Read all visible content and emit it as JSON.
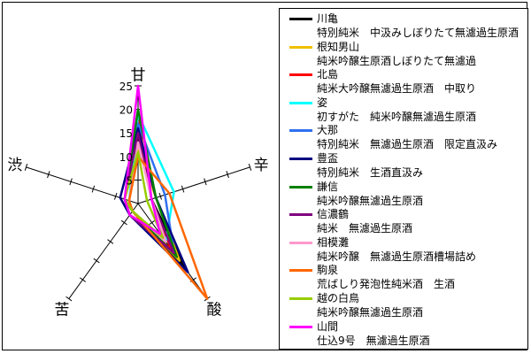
{
  "chart_data": {
    "type": "radar",
    "axes": [
      "甘",
      "辛",
      "酸",
      "苦",
      "渋"
    ],
    "ticks": [
      5,
      10,
      15,
      20,
      25
    ],
    "rmax": 25,
    "series": [
      {
        "name": "川亀",
        "description": "特別純米　中汲みしぼりたて無濾過生原酒",
        "color": "#000000",
        "values": [
          14,
          3,
          17,
          2,
          3
        ]
      },
      {
        "name": "根知男山",
        "description": "純米吟醸生原酒しぼりたて無濾過",
        "color": "#F0C000",
        "values": [
          12,
          4,
          15,
          2,
          2
        ]
      },
      {
        "name": "北島",
        "description": "純米大吟醸無濾過生原酒　中取り",
        "color": "#FF0000",
        "values": [
          18,
          3,
          12,
          3,
          3
        ]
      },
      {
        "name": "姿",
        "description": "初すがた　純米吟醸無濾過生原酒",
        "color": "#00FFFF",
        "values": [
          19,
          8,
          10,
          2,
          2
        ]
      },
      {
        "name": "大那",
        "description": "特別純米　無濾過生原酒　限定直汲み",
        "color": "#3070F0",
        "values": [
          17,
          6,
          13,
          3,
          3
        ]
      },
      {
        "name": "豊盃",
        "description": "特別純米　生酒直汲み",
        "color": "#000080",
        "values": [
          16,
          4,
          18,
          3,
          4
        ]
      },
      {
        "name": "謙信",
        "description": "純米吟醸無濾過生原酒",
        "color": "#008000",
        "values": [
          20,
          4,
          14,
          2,
          3
        ]
      },
      {
        "name": "信濃鶴",
        "description": "純米　無濾過生原酒",
        "color": "#800080",
        "values": [
          15,
          3,
          13,
          3,
          3
        ]
      },
      {
        "name": "相模灘",
        "description": "純米吟醸　無濾過生原酒槽場詰め",
        "color": "#FF99CC",
        "values": [
          13,
          3,
          10,
          2,
          2
        ]
      },
      {
        "name": "駒泉",
        "description": "荒ばしり発泡性純米酒　生酒",
        "color": "#FF6600",
        "values": [
          10,
          7,
          25,
          2,
          2
        ]
      },
      {
        "name": "越の白鳥",
        "description": "純米吟醸無濾過生原酒",
        "color": "#99CC00",
        "values": [
          11,
          2,
          9,
          2,
          3
        ]
      },
      {
        "name": "山間",
        "description": "仕込9号　無濾過生原酒",
        "color": "#FF00FF",
        "values": [
          25,
          3,
          8,
          3,
          3
        ]
      }
    ]
  }
}
